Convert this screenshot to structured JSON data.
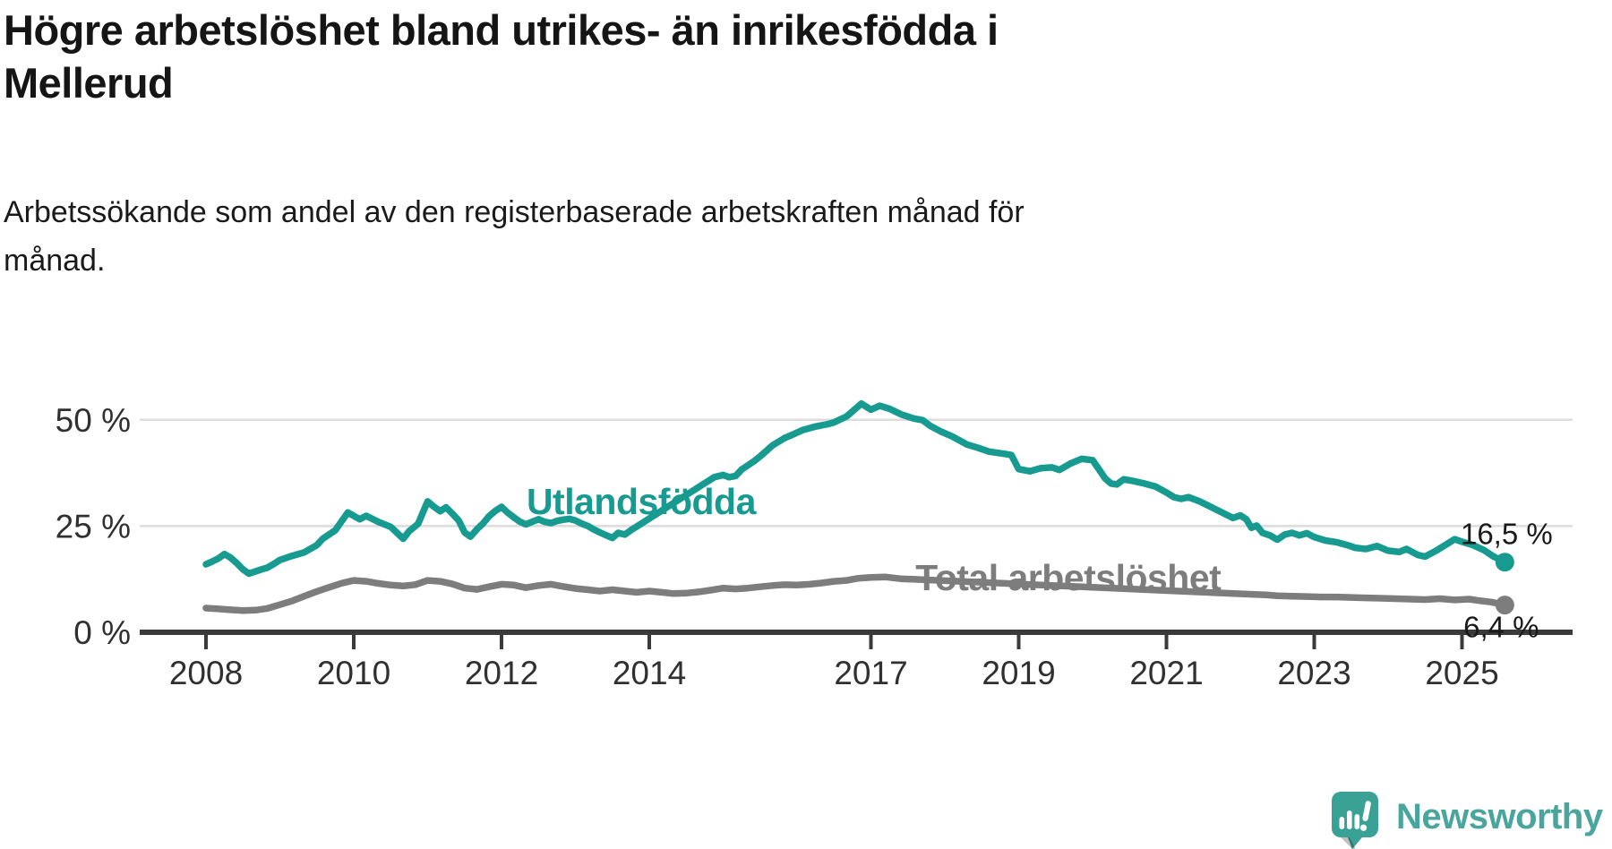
{
  "title": "Högre arbetslöshet bland utrikes- än inrikesfödda i\nMellerud",
  "subtitle": "Arbetssökande som andel av den registerbaserade arbetskraften månad för\nmånad.",
  "footer": {
    "brand": "Newsworthy",
    "icon_color": "#3aa294",
    "icon_shadow": "#2f8d82",
    "text_color": "#4aa59c"
  },
  "colors": {
    "grid": "#dcdcdc",
    "axis": "#3a3a3a",
    "tick_label": "#303030",
    "annotation": "#1a1a1a"
  },
  "chart_data": {
    "type": "line",
    "title": "Högre arbetslöshet bland utrikes- än inrikesfödda i Mellerud",
    "subtitle": "Arbetssökande som andel av den registerbaserade arbetskraften månad för månad.",
    "unit": "%",
    "grid": "horizontal-only",
    "legend_position": "inline-labels",
    "x_axis": {
      "range": [
        2007.1,
        2026.5
      ],
      "ticks": [
        {
          "value": 2008,
          "label": "2008"
        },
        {
          "value": 2010,
          "label": "2010"
        },
        {
          "value": 2012,
          "label": "2012"
        },
        {
          "value": 2014,
          "label": "2014"
        },
        {
          "value": 2017,
          "label": "2017"
        },
        {
          "value": 2019,
          "label": "2019"
        },
        {
          "value": 2021,
          "label": "2021"
        },
        {
          "value": 2023,
          "label": "2023"
        },
        {
          "value": 2025,
          "label": "2025"
        }
      ]
    },
    "y_axis": {
      "range": [
        0,
        57
      ],
      "ticks": [
        {
          "value": 0,
          "label": "0 %"
        },
        {
          "value": 25,
          "label": "25 %"
        },
        {
          "value": 50,
          "label": "50 %"
        }
      ]
    },
    "series": [
      {
        "id": "total-arbetsloshet",
        "name": "Total arbetslöshet",
        "color": "#7d7d7d",
        "line_width": 7.5,
        "label_at": {
          "x": 2019.67,
          "y": 12.85
        },
        "label_gap": [
          2017.45,
          2022.02
        ],
        "end_value": 6.4,
        "end_label": "6,4 %",
        "end_label_offset": [
          -4,
          36
        ],
        "points": [
          [
            2008.0,
            5.7
          ],
          [
            2008.17,
            5.5
          ],
          [
            2008.33,
            5.3
          ],
          [
            2008.5,
            5.1
          ],
          [
            2008.67,
            5.2
          ],
          [
            2008.83,
            5.6
          ],
          [
            2009.0,
            6.5
          ],
          [
            2009.17,
            7.4
          ],
          [
            2009.33,
            8.5
          ],
          [
            2009.5,
            9.6
          ],
          [
            2009.67,
            10.6
          ],
          [
            2009.83,
            11.5
          ],
          [
            2010.0,
            12.2
          ],
          [
            2010.17,
            12.0
          ],
          [
            2010.33,
            11.5
          ],
          [
            2010.5,
            11.1
          ],
          [
            2010.67,
            10.9
          ],
          [
            2010.83,
            11.2
          ],
          [
            2011.0,
            12.2
          ],
          [
            2011.17,
            12.0
          ],
          [
            2011.33,
            11.4
          ],
          [
            2011.5,
            10.4
          ],
          [
            2011.67,
            10.1
          ],
          [
            2011.83,
            10.7
          ],
          [
            2012.0,
            11.3
          ],
          [
            2012.17,
            11.1
          ],
          [
            2012.33,
            10.5
          ],
          [
            2012.5,
            11.0
          ],
          [
            2012.67,
            11.3
          ],
          [
            2012.83,
            10.8
          ],
          [
            2013.0,
            10.3
          ],
          [
            2013.17,
            10.0
          ],
          [
            2013.33,
            9.7
          ],
          [
            2013.5,
            10.0
          ],
          [
            2013.67,
            9.7
          ],
          [
            2013.83,
            9.4
          ],
          [
            2014.0,
            9.7
          ],
          [
            2014.17,
            9.4
          ],
          [
            2014.33,
            9.1
          ],
          [
            2014.5,
            9.2
          ],
          [
            2014.67,
            9.5
          ],
          [
            2014.83,
            9.9
          ],
          [
            2015.0,
            10.4
          ],
          [
            2015.17,
            10.2
          ],
          [
            2015.33,
            10.4
          ],
          [
            2015.5,
            10.7
          ],
          [
            2015.67,
            11.0
          ],
          [
            2015.83,
            11.2
          ],
          [
            2016.0,
            11.1
          ],
          [
            2016.17,
            11.3
          ],
          [
            2016.33,
            11.6
          ],
          [
            2016.5,
            12.0
          ],
          [
            2016.67,
            12.2
          ],
          [
            2016.83,
            12.7
          ],
          [
            2017.0,
            12.9
          ],
          [
            2017.2,
            13.0
          ],
          [
            2017.4,
            12.6
          ],
          [
            2022.05,
            9.0
          ],
          [
            2022.2,
            8.9
          ],
          [
            2022.35,
            8.8
          ],
          [
            2022.5,
            8.6
          ],
          [
            2022.7,
            8.5
          ],
          [
            2022.9,
            8.4
          ],
          [
            2023.1,
            8.3
          ],
          [
            2023.3,
            8.3
          ],
          [
            2023.5,
            8.2
          ],
          [
            2023.7,
            8.1
          ],
          [
            2023.9,
            8.0
          ],
          [
            2024.1,
            7.9
          ],
          [
            2024.3,
            7.8
          ],
          [
            2024.5,
            7.7
          ],
          [
            2024.7,
            7.9
          ],
          [
            2024.9,
            7.6
          ],
          [
            2025.1,
            7.8
          ],
          [
            2025.25,
            7.4
          ],
          [
            2025.4,
            7.1
          ],
          [
            2025.58,
            6.4
          ]
        ]
      },
      {
        "id": "utlandsfodda",
        "name": "Utlandsfödda",
        "color": "#179a90",
        "line_width": 7.5,
        "label_at": {
          "x": 2013.89,
          "y": 30.8
        },
        "label_gap": [
          2013.88,
          2014.86
        ],
        "end_value": 16.5,
        "end_label": "16,5 %",
        "end_label_offset": [
          2,
          -20
        ],
        "points": [
          [
            2008.0,
            16.0
          ],
          [
            2008.08,
            16.6
          ],
          [
            2008.17,
            17.4
          ],
          [
            2008.25,
            18.4
          ],
          [
            2008.33,
            17.6
          ],
          [
            2008.42,
            16.2
          ],
          [
            2008.5,
            14.8
          ],
          [
            2008.58,
            13.8
          ],
          [
            2008.67,
            14.3
          ],
          [
            2008.75,
            14.8
          ],
          [
            2008.83,
            15.2
          ],
          [
            2008.92,
            16.1
          ],
          [
            2009.0,
            17.0
          ],
          [
            2009.17,
            18.0
          ],
          [
            2009.33,
            18.8
          ],
          [
            2009.5,
            20.5
          ],
          [
            2009.58,
            22.0
          ],
          [
            2009.75,
            24.0
          ],
          [
            2009.92,
            28.2
          ],
          [
            2010.08,
            26.6
          ],
          [
            2010.17,
            27.4
          ],
          [
            2010.33,
            26.0
          ],
          [
            2010.5,
            24.8
          ],
          [
            2010.58,
            23.5
          ],
          [
            2010.67,
            22.0
          ],
          [
            2010.75,
            23.8
          ],
          [
            2010.87,
            25.5
          ],
          [
            2011.0,
            30.8
          ],
          [
            2011.08,
            29.6
          ],
          [
            2011.17,
            28.5
          ],
          [
            2011.25,
            29.4
          ],
          [
            2011.33,
            28.0
          ],
          [
            2011.42,
            26.3
          ],
          [
            2011.5,
            23.5
          ],
          [
            2011.58,
            22.5
          ],
          [
            2011.67,
            24.3
          ],
          [
            2011.75,
            25.6
          ],
          [
            2011.83,
            27.3
          ],
          [
            2011.92,
            28.6
          ],
          [
            2012.0,
            29.5
          ],
          [
            2012.08,
            28.2
          ],
          [
            2012.17,
            27.0
          ],
          [
            2012.25,
            26.0
          ],
          [
            2012.33,
            25.4
          ],
          [
            2012.5,
            26.6
          ],
          [
            2012.58,
            26.0
          ],
          [
            2012.67,
            25.7
          ],
          [
            2012.75,
            26.2
          ],
          [
            2012.83,
            26.5
          ],
          [
            2012.92,
            26.7
          ],
          [
            2013.0,
            26.3
          ],
          [
            2013.08,
            25.6
          ],
          [
            2013.17,
            25.0
          ],
          [
            2013.25,
            24.2
          ],
          [
            2013.33,
            23.5
          ],
          [
            2013.42,
            22.8
          ],
          [
            2013.5,
            22.2
          ],
          [
            2013.58,
            23.4
          ],
          [
            2013.67,
            23.0
          ],
          [
            2013.75,
            24.0
          ],
          [
            2013.85,
            25.1
          ],
          [
            2014.88,
            36.5
          ],
          [
            2015.0,
            37.0
          ],
          [
            2015.08,
            36.5
          ],
          [
            2015.17,
            36.8
          ],
          [
            2015.25,
            38.3
          ],
          [
            2015.42,
            40.3
          ],
          [
            2015.5,
            41.4
          ],
          [
            2015.67,
            44.0
          ],
          [
            2015.83,
            45.7
          ],
          [
            2015.95,
            46.6
          ],
          [
            2016.08,
            47.6
          ],
          [
            2016.25,
            48.4
          ],
          [
            2016.42,
            49.0
          ],
          [
            2016.5,
            49.4
          ],
          [
            2016.67,
            50.8
          ],
          [
            2016.75,
            52.0
          ],
          [
            2016.87,
            53.8
          ],
          [
            2017.0,
            52.4
          ],
          [
            2017.12,
            53.3
          ],
          [
            2017.25,
            52.6
          ],
          [
            2017.42,
            51.2
          ],
          [
            2017.58,
            50.3
          ],
          [
            2017.7,
            49.9
          ],
          [
            2017.8,
            48.6
          ],
          [
            2017.95,
            47.2
          ],
          [
            2018.1,
            46.1
          ],
          [
            2018.3,
            44.2
          ],
          [
            2018.45,
            43.4
          ],
          [
            2018.6,
            42.5
          ],
          [
            2018.8,
            42.0
          ],
          [
            2018.9,
            41.7
          ],
          [
            2019.0,
            38.4
          ],
          [
            2019.15,
            37.9
          ],
          [
            2019.3,
            38.6
          ],
          [
            2019.45,
            38.8
          ],
          [
            2019.55,
            38.2
          ],
          [
            2019.7,
            39.7
          ],
          [
            2019.85,
            40.8
          ],
          [
            2020.0,
            40.5
          ],
          [
            2020.08,
            38.5
          ],
          [
            2020.17,
            36.2
          ],
          [
            2020.25,
            35.0
          ],
          [
            2020.33,
            34.8
          ],
          [
            2020.42,
            36.0
          ],
          [
            2020.55,
            35.6
          ],
          [
            2020.7,
            35.0
          ],
          [
            2020.85,
            34.3
          ],
          [
            2021.0,
            32.9
          ],
          [
            2021.1,
            31.8
          ],
          [
            2021.2,
            31.4
          ],
          [
            2021.3,
            31.8
          ],
          [
            2021.45,
            30.8
          ],
          [
            2021.6,
            29.5
          ],
          [
            2021.75,
            28.2
          ],
          [
            2021.9,
            26.9
          ],
          [
            2022.0,
            27.5
          ],
          [
            2022.08,
            26.6
          ],
          [
            2022.15,
            24.6
          ],
          [
            2022.22,
            25.1
          ],
          [
            2022.3,
            23.4
          ],
          [
            2022.4,
            22.8
          ],
          [
            2022.5,
            21.8
          ],
          [
            2022.6,
            23.0
          ],
          [
            2022.7,
            23.4
          ],
          [
            2022.8,
            22.8
          ],
          [
            2022.9,
            23.3
          ],
          [
            2023.0,
            22.4
          ],
          [
            2023.15,
            21.6
          ],
          [
            2023.3,
            21.2
          ],
          [
            2023.45,
            20.5
          ],
          [
            2023.55,
            19.9
          ],
          [
            2023.7,
            19.6
          ],
          [
            2023.85,
            20.3
          ],
          [
            2024.0,
            19.2
          ],
          [
            2024.15,
            18.9
          ],
          [
            2024.25,
            19.6
          ],
          [
            2024.4,
            18.2
          ],
          [
            2024.5,
            17.8
          ],
          [
            2024.65,
            19.2
          ],
          [
            2024.8,
            20.8
          ],
          [
            2024.9,
            21.9
          ],
          [
            2025.0,
            21.3
          ],
          [
            2025.15,
            20.5
          ],
          [
            2025.3,
            19.3
          ],
          [
            2025.42,
            17.9
          ],
          [
            2025.58,
            16.5
          ]
        ]
      }
    ]
  }
}
